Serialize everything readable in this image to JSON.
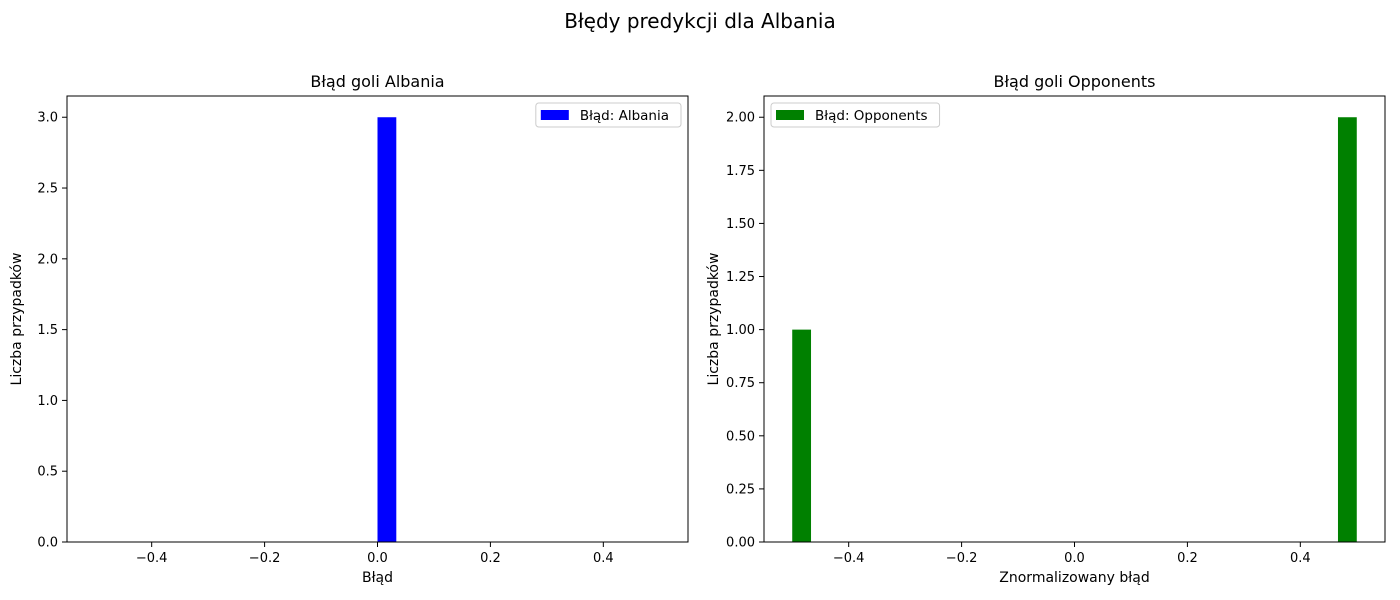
{
  "figure": {
    "suptitle": "Błędy predykcji dla Albania"
  },
  "chart_data": [
    {
      "type": "bar",
      "title": "Błąd goli Albania",
      "xlabel": "Błąd",
      "ylabel": "Liczba przypadków",
      "xlim": [
        -0.55,
        0.55
      ],
      "ylim": [
        0,
        3.15
      ],
      "xticks": [
        -0.4,
        -0.2,
        0.0,
        0.2,
        0.4
      ],
      "xtick_labels": [
        "−0.4",
        "−0.2",
        "0.0",
        "0.2",
        "0.4"
      ],
      "yticks": [
        0,
        0.5,
        1.0,
        1.5,
        2.0,
        2.5,
        3.0
      ],
      "ytick_labels": [
        "0.0",
        "0.5",
        "1.0",
        "1.5",
        "2.0",
        "2.5",
        "3.0"
      ],
      "bars": [
        {
          "x0": 0.0,
          "x1": 0.0333,
          "value": 3
        }
      ],
      "color": "#0000ff",
      "legend": {
        "label": "Błąd: Albania",
        "position": "upper right"
      },
      "grid": false
    },
    {
      "type": "bar",
      "title": "Błąd goli Opponents",
      "xlabel": "Znormalizowany błąd",
      "ylabel": "Liczba przypadków",
      "xlim": [
        -0.55,
        0.55
      ],
      "ylim": [
        0,
        2.1
      ],
      "xticks": [
        -0.4,
        -0.2,
        0.0,
        0.2,
        0.4
      ],
      "xtick_labels": [
        "−0.4",
        "−0.2",
        "0.0",
        "0.2",
        "0.4"
      ],
      "yticks": [
        0,
        0.25,
        0.5,
        0.75,
        1.0,
        1.25,
        1.5,
        1.75,
        2.0
      ],
      "ytick_labels": [
        "0.00",
        "0.25",
        "0.50",
        "0.75",
        "1.00",
        "1.25",
        "1.50",
        "1.75",
        "2.00"
      ],
      "bars": [
        {
          "x0": -0.5,
          "x1": -0.4667,
          "value": 1
        },
        {
          "x0": 0.4667,
          "x1": 0.5,
          "value": 2
        }
      ],
      "color": "#008000",
      "legend": {
        "label": "Błąd: Opponents",
        "position": "upper left"
      },
      "grid": false
    }
  ]
}
